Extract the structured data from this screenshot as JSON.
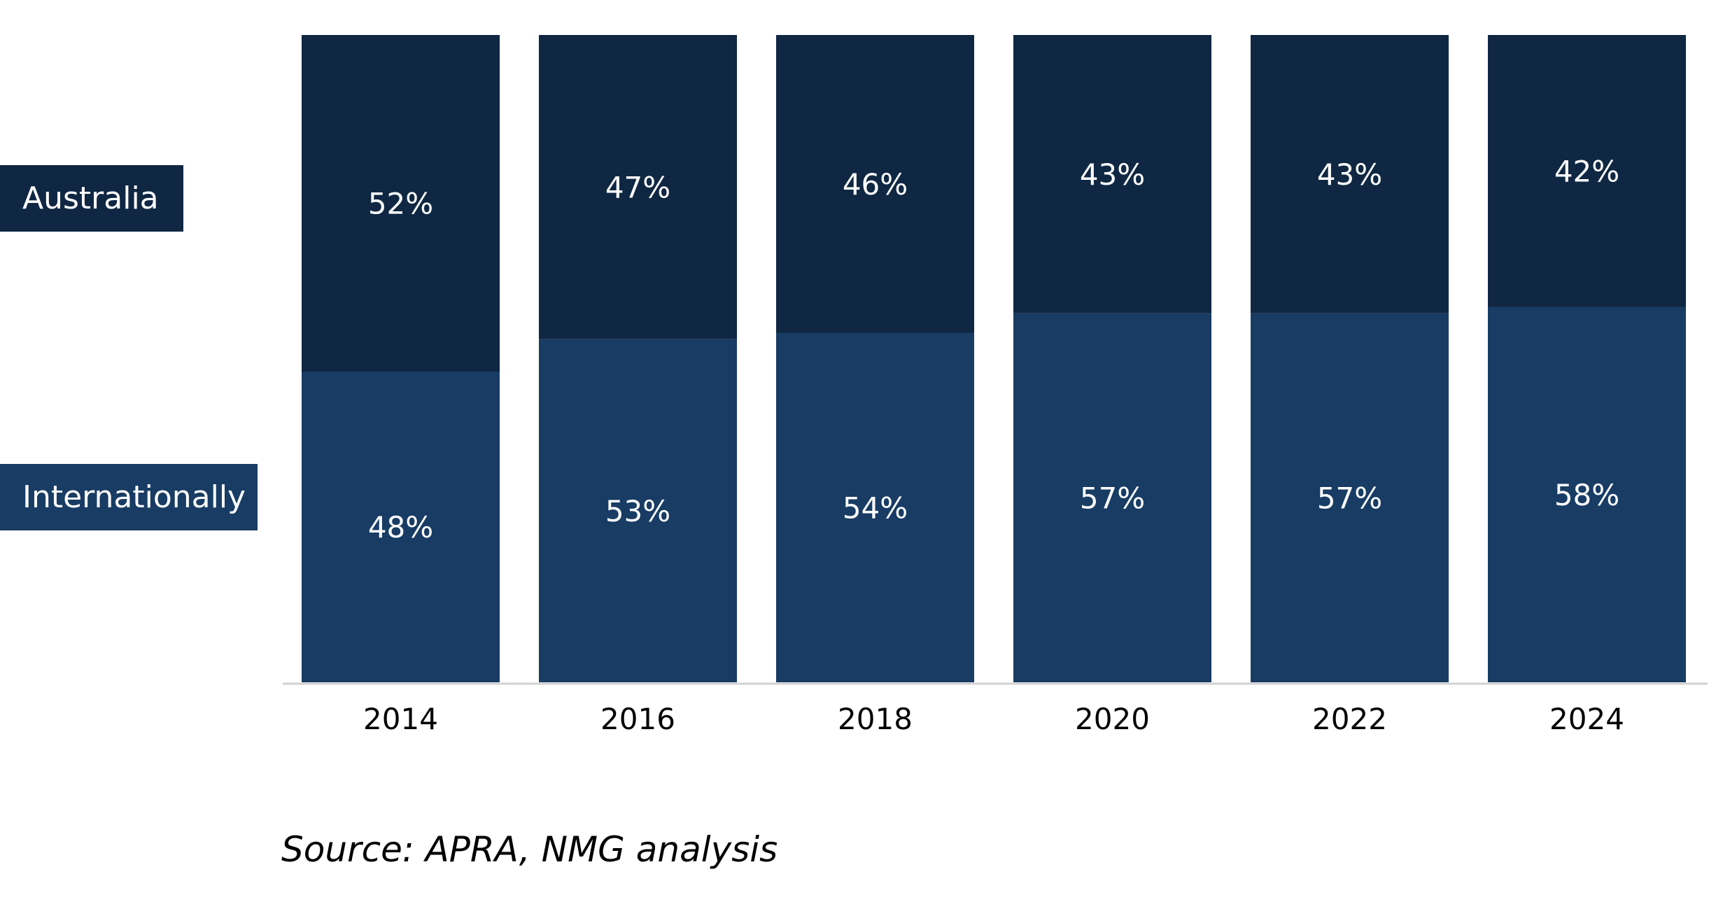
{
  "chart_data": {
    "type": "bar",
    "stacked": true,
    "title": "",
    "xlabel": "",
    "ylabel": "",
    "ylim": [
      0,
      100
    ],
    "grid": false,
    "legend_placement": "left",
    "categories": [
      "2014",
      "2016",
      "2018",
      "2020",
      "2022",
      "2024"
    ],
    "series": [
      {
        "name": "Internationally",
        "values": [
          48,
          53,
          54,
          57,
          57,
          58
        ],
        "labels": [
          "48%",
          "53%",
          "54%",
          "57%",
          "57%",
          "58%"
        ],
        "color": "#183c64"
      },
      {
        "name": "Australia",
        "values": [
          52,
          47,
          46,
          43,
          43,
          42
        ],
        "labels": [
          "52%",
          "47%",
          "46%",
          "43%",
          "43%",
          "42%"
        ],
        "color": "#0f2742"
      }
    ],
    "axis_color": "#d0d0d0",
    "label_color": "#ffffff",
    "tick_color": "#000000"
  },
  "legend": {
    "australia": "Australia",
    "internationally": "Internationally"
  },
  "source": "Source: APRA, NMG analysis"
}
